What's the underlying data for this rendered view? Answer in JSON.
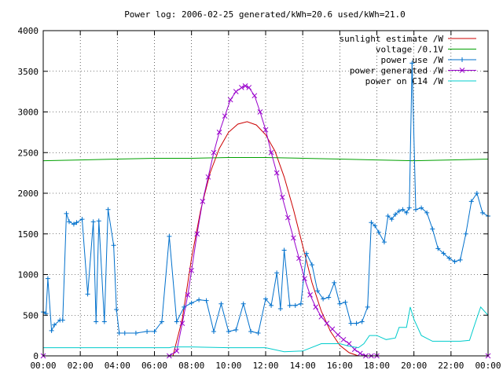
{
  "chart_data": {
    "type": "line",
    "title": "Power log: 2006-02-25 generated/kWh=20.6 used/kWh=21.0",
    "xlabel": "",
    "ylabel": "",
    "x_unit": "hours",
    "xlim": [
      0,
      24
    ],
    "ylim": [
      0,
      4000
    ],
    "x_ticks": [
      {
        "value": 0,
        "label": "00:00"
      },
      {
        "value": 2,
        "label": "02:00"
      },
      {
        "value": 4,
        "label": "04:00"
      },
      {
        "value": 6,
        "label": "06:00"
      },
      {
        "value": 8,
        "label": "08:00"
      },
      {
        "value": 10,
        "label": "10:00"
      },
      {
        "value": 12,
        "label": "12:00"
      },
      {
        "value": 14,
        "label": "14:00"
      },
      {
        "value": 16,
        "label": "16:00"
      },
      {
        "value": 18,
        "label": "18:00"
      },
      {
        "value": 20,
        "label": "20:00"
      },
      {
        "value": 22,
        "label": "22:00"
      },
      {
        "value": 24,
        "label": "00:00"
      }
    ],
    "y_ticks": [
      {
        "value": 0,
        "label": "0"
      },
      {
        "value": 500,
        "label": "500"
      },
      {
        "value": 1000,
        "label": "1000"
      },
      {
        "value": 1500,
        "label": "1500"
      },
      {
        "value": 2000,
        "label": "2000"
      },
      {
        "value": 2500,
        "label": "2500"
      },
      {
        "value": 3000,
        "label": "3000"
      },
      {
        "value": 3500,
        "label": "3500"
      },
      {
        "value": 4000,
        "label": "4000"
      }
    ],
    "grid": true,
    "legend_position": "top-right",
    "series": [
      {
        "name": "sunlight estimate /W",
        "color": "#cc0000",
        "marker": "none",
        "x": [
          7.0,
          7.5,
          8.0,
          8.5,
          9.0,
          9.5,
          10.0,
          10.5,
          11.0,
          11.5,
          12.0,
          12.5,
          13.0,
          13.5,
          14.0,
          14.5,
          15.0,
          15.5,
          16.0,
          16.5,
          17.0
        ],
        "y": [
          0,
          450,
          1200,
          1800,
          2250,
          2550,
          2750,
          2850,
          2880,
          2840,
          2720,
          2520,
          2200,
          1800,
          1350,
          900,
          550,
          300,
          130,
          40,
          0
        ]
      },
      {
        "name": "voltage /0.1V",
        "color": "#00a000",
        "marker": "none",
        "x": [
          0,
          2,
          4,
          6,
          8,
          10,
          12,
          14,
          16,
          18,
          20,
          22,
          24
        ],
        "y": [
          2400,
          2410,
          2420,
          2430,
          2430,
          2440,
          2440,
          2430,
          2420,
          2410,
          2400,
          2410,
          2420
        ]
      },
      {
        "name": "power use /W",
        "color": "#0070cc",
        "marker": "plus",
        "x": [
          0.0,
          0.15,
          0.25,
          0.45,
          0.6,
          0.9,
          1.05,
          1.25,
          1.4,
          1.65,
          1.8,
          2.1,
          2.4,
          2.7,
          2.85,
          3.0,
          3.3,
          3.5,
          3.8,
          3.95,
          4.1,
          4.4,
          5.0,
          5.6,
          6.0,
          6.4,
          6.8,
          7.2,
          7.6,
          8.0,
          8.4,
          8.8,
          9.2,
          9.6,
          10.0,
          10.4,
          10.8,
          11.2,
          11.6,
          12.0,
          12.3,
          12.6,
          12.8,
          13.0,
          13.3,
          13.6,
          13.9,
          14.2,
          14.5,
          14.8,
          15.1,
          15.4,
          15.7,
          16.0,
          16.3,
          16.6,
          16.9,
          17.2,
          17.5,
          17.7,
          17.9,
          18.1,
          18.4,
          18.6,
          18.8,
          19.0,
          19.2,
          19.4,
          19.6,
          19.75,
          19.9,
          20.1,
          20.4,
          20.7,
          21.0,
          21.3,
          21.6,
          21.9,
          22.2,
          22.5,
          22.8,
          23.1,
          23.4,
          23.7,
          24.0
        ],
        "y": [
          540,
          520,
          950,
          310,
          380,
          440,
          440,
          1750,
          1650,
          1620,
          1640,
          1680,
          760,
          1650,
          420,
          1660,
          420,
          1800,
          1360,
          570,
          280,
          280,
          280,
          300,
          300,
          420,
          1470,
          420,
          600,
          650,
          690,
          680,
          300,
          640,
          300,
          320,
          640,
          300,
          280,
          700,
          620,
          1020,
          580,
          1300,
          620,
          620,
          640,
          1260,
          1120,
          800,
          700,
          720,
          900,
          640,
          660,
          400,
          400,
          420,
          600,
          1640,
          1600,
          1520,
          1400,
          1720,
          1680,
          1740,
          1780,
          1800,
          1760,
          1820,
          3600,
          1800,
          1820,
          1760,
          1560,
          1320,
          1260,
          1200,
          1160,
          1180,
          1500,
          1900,
          2000,
          1760,
          1720
        ]
      },
      {
        "name": "power generated /W",
        "color": "#9900cc",
        "marker": "x",
        "x": [
          0,
          6.8,
          7.2,
          7.5,
          7.8,
          8.0,
          8.3,
          8.6,
          8.9,
          9.2,
          9.5,
          9.8,
          10.1,
          10.4,
          10.7,
          10.9,
          11.1,
          11.4,
          11.7,
          12.0,
          12.3,
          12.6,
          12.9,
          13.2,
          13.5,
          13.8,
          14.1,
          14.4,
          14.7,
          15.0,
          15.3,
          15.6,
          15.9,
          16.2,
          16.5,
          16.8,
          17.1,
          17.4,
          17.7,
          18.0,
          24.0
        ],
        "y": [
          0,
          0,
          60,
          400,
          750,
          1050,
          1500,
          1900,
          2200,
          2500,
          2750,
          2950,
          3150,
          3250,
          3300,
          3320,
          3300,
          3200,
          3000,
          2780,
          2500,
          2250,
          1950,
          1700,
          1450,
          1200,
          950,
          750,
          600,
          480,
          400,
          330,
          260,
          200,
          150,
          80,
          30,
          0,
          0,
          0,
          0
        ]
      },
      {
        "name": "power on C14 /W",
        "color": "#00cccc",
        "marker": "none",
        "x": [
          0,
          5.5,
          6.2,
          6.8,
          7.0,
          8.0,
          10.0,
          12.0,
          13.0,
          14.0,
          15.0,
          16.0,
          16.5,
          17.0,
          17.3,
          17.6,
          18.0,
          18.5,
          19.0,
          19.2,
          19.6,
          19.8,
          20.0,
          20.4,
          21.0,
          22.0,
          22.5,
          23.0,
          23.3,
          23.6,
          24.0
        ],
        "y": [
          100,
          100,
          100,
          100,
          110,
          110,
          100,
          100,
          50,
          60,
          150,
          150,
          120,
          100,
          150,
          250,
          250,
          200,
          220,
          350,
          350,
          600,
          450,
          250,
          180,
          180,
          180,
          190,
          400,
          600,
          500
        ]
      }
    ]
  }
}
